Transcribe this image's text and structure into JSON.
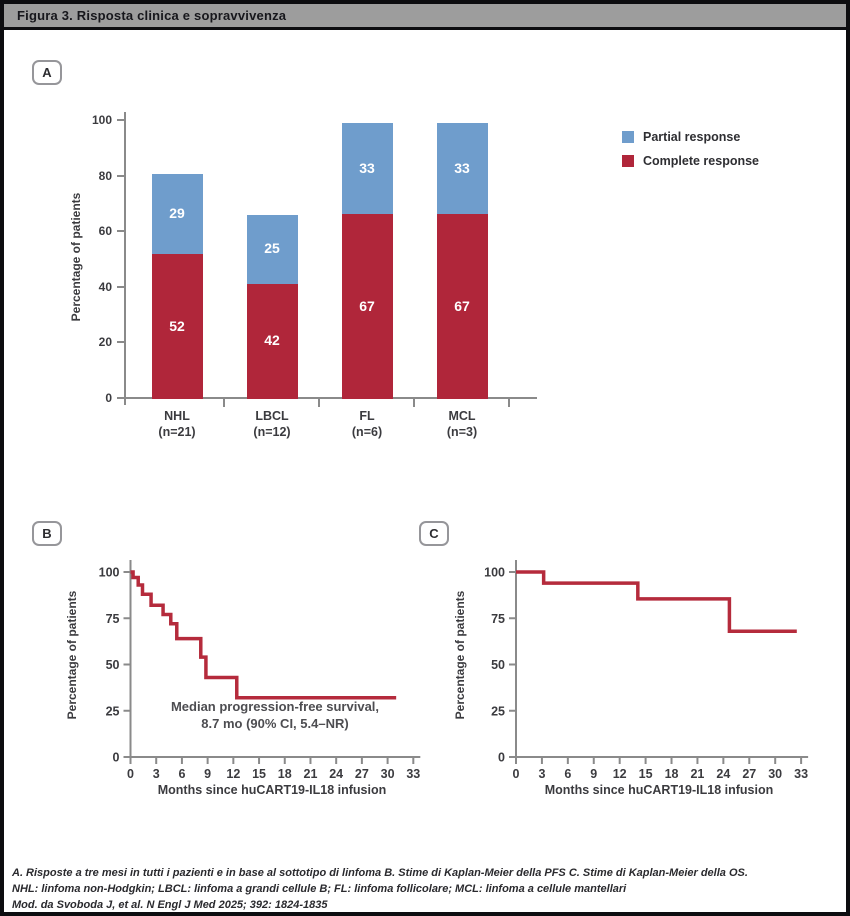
{
  "header": {
    "title": "Figura 3. Risposta clinica e sopravvivenza"
  },
  "panels": {
    "a_label": "A",
    "b_label": "B",
    "c_label": "C"
  },
  "legend": [
    {
      "label": "Partial response",
      "color": "#6f9dcc"
    },
    {
      "label": "Complete response",
      "color": "#b0263a"
    }
  ],
  "colors": {
    "complete_red": "#b0263a",
    "partial_blue": "#6f9dcc",
    "km_line": "#b52b3c",
    "axis_gray": "#8a8a8a",
    "header_gray": "#9d9d9d",
    "text_dark": "#3b3b3f"
  },
  "chart_data": [
    {
      "id": "response_bars",
      "type": "bar",
      "stacked": true,
      "ylabel": "Percentage of patients",
      "ylim": [
        0,
        100
      ],
      "yticks": [
        0,
        20,
        40,
        60,
        80,
        100
      ],
      "categories": [
        "NHL",
        "LBCL",
        "FL",
        "MCL"
      ],
      "category_n": [
        "(n=21)",
        "(n=12)",
        "(n=6)",
        "(n=3)"
      ],
      "series": [
        {
          "name": "Complete response",
          "color": "#b0263a",
          "values": [
            52,
            42,
            67,
            67
          ]
        },
        {
          "name": "Partial response",
          "color": "#6f9dcc",
          "values": [
            29,
            25,
            33,
            33
          ]
        }
      ],
      "drawn_complete_top": [
        52,
        41.5,
        66.5,
        66.5
      ],
      "drawn_stack_top": [
        81,
        66.3,
        99.2,
        99.2
      ],
      "legend_position": "right",
      "grid": false
    },
    {
      "id": "pfs_km",
      "type": "line",
      "subtype": "kaplan-meier-step",
      "xlabel": "Months since huCART19-IL18 infusion",
      "ylabel": "Percentage of patients",
      "xlim": [
        0,
        33
      ],
      "ylim": [
        0,
        100
      ],
      "xticks": [
        0,
        3,
        6,
        9,
        12,
        15,
        18,
        21,
        24,
        27,
        30,
        33
      ],
      "yticks": [
        0,
        25,
        50,
        75,
        100
      ],
      "annotation": [
        "Median progression-free survival,",
        "8.7 mo (90% CI, 5.4–NR)"
      ],
      "steps": [
        [
          0,
          100
        ],
        [
          0.3,
          97
        ],
        [
          0.9,
          93
        ],
        [
          1.4,
          88
        ],
        [
          2.4,
          82
        ],
        [
          3.8,
          77
        ],
        [
          4.7,
          72
        ],
        [
          5.4,
          64
        ],
        [
          8.2,
          54
        ],
        [
          8.8,
          43
        ],
        [
          12.4,
          32
        ]
      ],
      "end_x": 31,
      "grid": false
    },
    {
      "id": "os_km",
      "type": "line",
      "subtype": "kaplan-meier-step",
      "xlabel": "Months since huCART19-IL18 infusion",
      "ylabel": "Percentage of patients",
      "xlim": [
        0,
        33
      ],
      "ylim": [
        0,
        100
      ],
      "xticks": [
        0,
        3,
        6,
        9,
        12,
        15,
        18,
        21,
        24,
        27,
        30,
        33
      ],
      "yticks": [
        0,
        25,
        50,
        75,
        100
      ],
      "annotation": [],
      "steps": [
        [
          0,
          100
        ],
        [
          3.2,
          94
        ],
        [
          14.1,
          85.5
        ],
        [
          24.7,
          68
        ]
      ],
      "end_x": 32.5,
      "grid": false
    }
  ],
  "footer": {
    "line1": "A. Risposte a tre mesi in tutti i pazienti e in base al sottotipo di linfoma B. Stime di Kaplan-Meier della PFS C. Stime di Kaplan-Meier della OS.",
    "line2": "NHL: linfoma non-Hodgkin; LBCL: linfoma a grandi cellule B; FL: linfoma follicolare; MCL: linfoma a cellule mantellari",
    "line3": "Mod. da Svoboda J, et al. N Engl J Med 2025; 392: 1824-1835"
  }
}
